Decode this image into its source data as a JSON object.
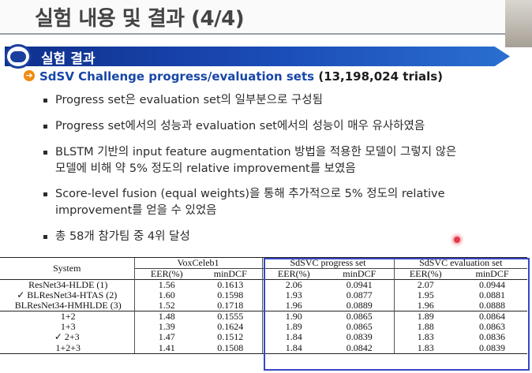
{
  "slide": {
    "title": "실험 내용 및 결과 (4/4)",
    "section_label": "실험 결과",
    "subtitle": "SdSV Challenge progress/evaluation sets",
    "subtitle_trials": "(13,198,024 trials)",
    "bullets": [
      {
        "lines": [
          "Progress set은 evaluation set의 일부분으로 구성됨"
        ]
      },
      {
        "lines": [
          "Progress set에서의 성능과 evaluation set에서의 성능이 매우 유사하였음"
        ]
      },
      {
        "lines": [
          "BLSTM 기반의 input feature augmentation 방법을 적용한 모델이 그렇지 않은",
          "모델에 비해 약 5% 정도의 relative improvement를 보였음"
        ]
      },
      {
        "lines": [
          "Score-level fusion (equal weights)을 통해 추가적으로 5% 정도의 relative",
          "improvement를 얻을 수 있었음"
        ]
      },
      {
        "lines": [
          "총 58개 참가팀 중 4위 달성"
        ]
      }
    ]
  },
  "table": {
    "system_header": "System",
    "groups": [
      "VoxCeleb1",
      "SdSVC progress set",
      "SdSVC evaluation set"
    ],
    "metrics": [
      "EER(%)",
      "minDCF"
    ],
    "rows": [
      {
        "system": "ResNet34-HLDE (1)",
        "check": "",
        "values": [
          "1.56",
          "0.1613",
          "2.06",
          "0.0941",
          "2.07",
          "0.0944"
        ]
      },
      {
        "system": "BLResNet34-HTAS (2)",
        "check": "✓",
        "values": [
          "1.60",
          "0.1598",
          "1.93",
          "0.0877",
          "1.95",
          "0.0881"
        ]
      },
      {
        "system": "BLResNet34-HMHLDE (3)",
        "check": "",
        "values": [
          "1.52",
          "0.1718",
          "1.96",
          "0.0889",
          "1.96",
          "0.0888"
        ]
      },
      {
        "system": "1+2",
        "check": "",
        "values": [
          "1.48",
          "0.1555",
          "1.90",
          "0.0865",
          "1.89",
          "0.0864"
        ]
      },
      {
        "system": "1+3",
        "check": "",
        "values": [
          "1.39",
          "0.1624",
          "1.89",
          "0.0865",
          "1.88",
          "0.0863"
        ]
      },
      {
        "system": "2+3",
        "check": "✓",
        "values": [
          "1.47",
          "0.1512",
          "1.84",
          "0.0839",
          "1.83",
          "0.0836"
        ]
      },
      {
        "system": "1+2+3",
        "check": "",
        "values": [
          "1.41",
          "0.1508",
          "1.84",
          "0.0842",
          "1.83",
          "0.0839"
        ]
      }
    ]
  },
  "colors": {
    "banner": "#1c4db8",
    "subtitle": "#1846a8",
    "highlight_box": "#3847c4",
    "laser": "#e23b4a"
  },
  "icons": {
    "badge": "university-logo-icon",
    "subtitle": "arrow-circle-icon",
    "bullet": "square-bullet-icon"
  }
}
